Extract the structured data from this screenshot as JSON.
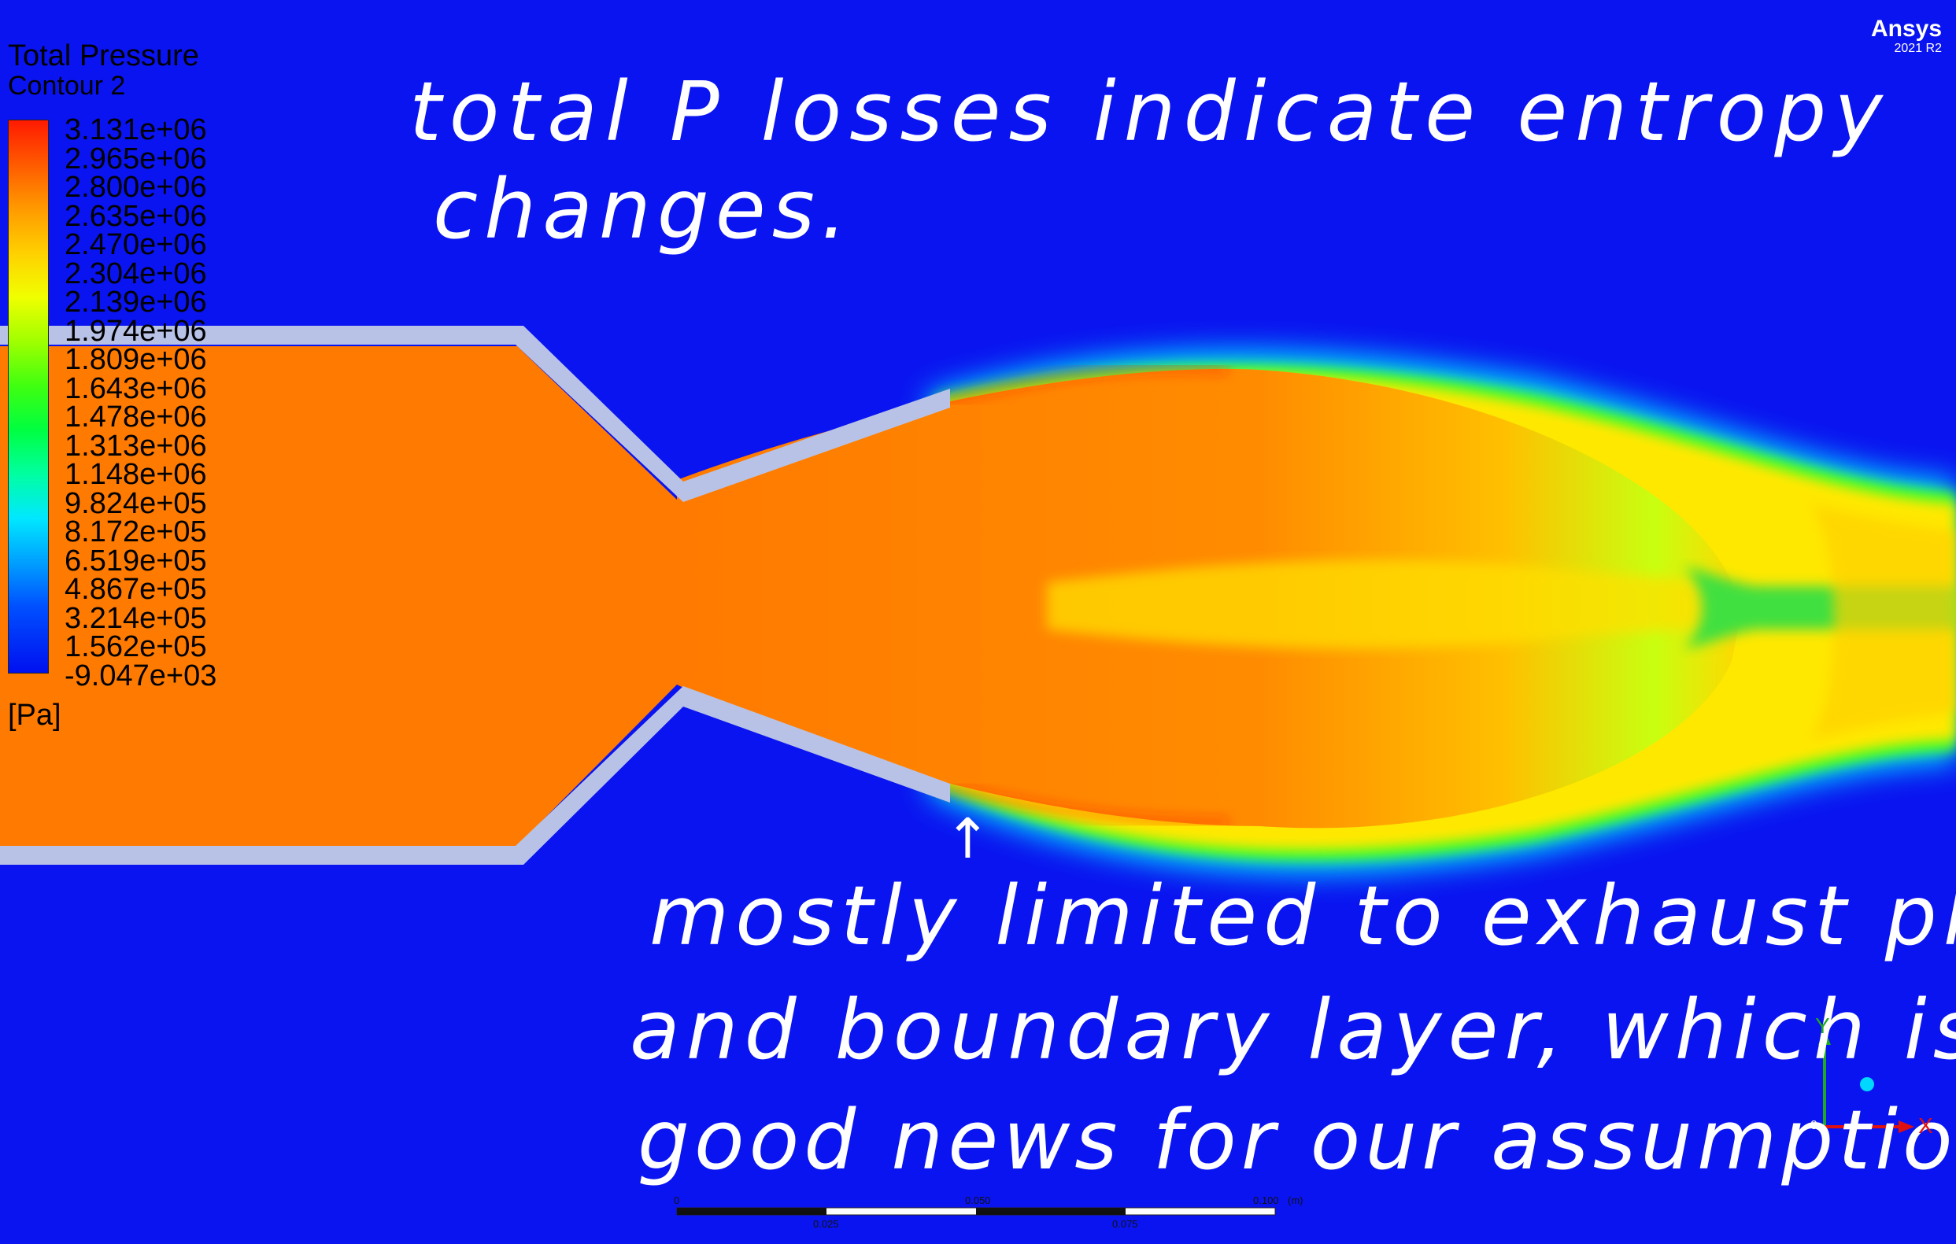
{
  "legend": {
    "title": "Total Pressure",
    "subtitle": "Contour 2",
    "unit": "[Pa]",
    "levels": [
      "3.131e+06",
      "2.965e+06",
      "2.800e+06",
      "2.635e+06",
      "2.470e+06",
      "2.304e+06",
      "2.139e+06",
      "1.974e+06",
      "1.809e+06",
      "1.643e+06",
      "1.478e+06",
      "1.313e+06",
      "1.148e+06",
      "9.824e+05",
      "8.172e+05",
      "6.519e+05",
      "4.867e+05",
      "3.214e+05",
      "1.562e+05",
      "-9.047e+03"
    ]
  },
  "brand": {
    "name": "Ansys",
    "version": "2021 R2"
  },
  "annotations": {
    "top_line1": "total P losses indicate entropy",
    "top_line2": "changes.",
    "arrow_mark": "↑",
    "bottom_line1": "mostly limited to exhaust plume",
    "bottom_line2": "and boundary layer, which is",
    "bottom_line3": "good news for our assumptions."
  },
  "axes": {
    "y": "Y",
    "x": "X",
    "origin": "0"
  },
  "scale": {
    "ticks_top": [
      "0",
      "0.050",
      "0.100"
    ],
    "ticks_bottom": [
      "0.025",
      "0.075"
    ],
    "unit": "(m)"
  },
  "colors": {
    "background": "#0a14f0",
    "core": "#ff7a00",
    "wall": "#b8c2e6",
    "annotation": "#ffffff"
  }
}
